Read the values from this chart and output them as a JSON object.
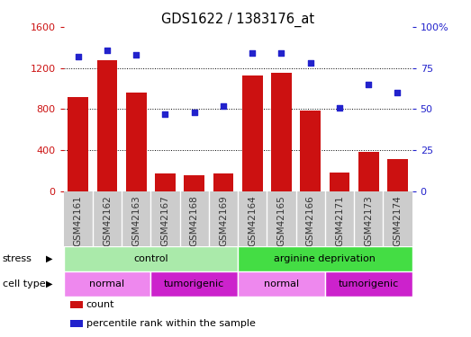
{
  "title": "GDS1622 / 1383176_at",
  "samples": [
    "GSM42161",
    "GSM42162",
    "GSM42163",
    "GSM42167",
    "GSM42168",
    "GSM42169",
    "GSM42164",
    "GSM42165",
    "GSM42166",
    "GSM42171",
    "GSM42173",
    "GSM42174"
  ],
  "count": [
    920,
    1280,
    960,
    170,
    155,
    175,
    1130,
    1150,
    790,
    180,
    380,
    310
  ],
  "percentile": [
    82,
    86,
    83,
    47,
    48,
    52,
    84,
    84,
    78,
    51,
    65,
    60
  ],
  "bar_color": "#cc1111",
  "dot_color": "#2222cc",
  "left_ylim": [
    0,
    1600
  ],
  "left_yticks": [
    0,
    400,
    800,
    1200,
    1600
  ],
  "right_ylim": [
    0,
    100
  ],
  "right_yticks": [
    0,
    25,
    50,
    75,
    100
  ],
  "right_yticklabels": [
    "0",
    "25",
    "50",
    "75",
    "100%"
  ],
  "stress_groups": [
    {
      "label": "control",
      "start": 0,
      "end": 6,
      "color": "#aaeaaa"
    },
    {
      "label": "arginine deprivation",
      "start": 6,
      "end": 12,
      "color": "#44dd44"
    }
  ],
  "celltype_groups": [
    {
      "label": "normal",
      "start": 0,
      "end": 3,
      "color": "#ee88ee"
    },
    {
      "label": "tumorigenic",
      "start": 3,
      "end": 6,
      "color": "#cc22cc"
    },
    {
      "label": "normal",
      "start": 6,
      "end": 9,
      "color": "#ee88ee"
    },
    {
      "label": "tumorigenic",
      "start": 9,
      "end": 12,
      "color": "#cc22cc"
    }
  ],
  "legend_items": [
    {
      "label": "count",
      "color": "#cc1111"
    },
    {
      "label": "percentile rank within the sample",
      "color": "#2222cc"
    }
  ],
  "stress_label": "stress",
  "celltype_label": "cell type",
  "xtick_bg": "#cccccc",
  "tick_color_left": "#cc1111",
  "tick_color_right": "#2222cc",
  "grid_yticks": [
    400,
    800,
    1200
  ]
}
